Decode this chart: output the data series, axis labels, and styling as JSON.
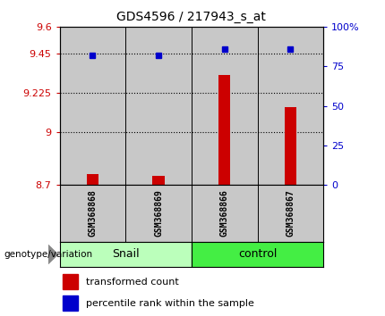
{
  "title": "GDS4596 / 217943_s_at",
  "samples": [
    "GSM368868",
    "GSM368869",
    "GSM368866",
    "GSM368867"
  ],
  "groups": [
    "Snail",
    "Snail",
    "control",
    "control"
  ],
  "bar_values": [
    8.762,
    8.752,
    9.325,
    9.142
  ],
  "percentile_values": [
    82,
    82,
    86,
    86
  ],
  "bar_base": 8.7,
  "ylim_left": [
    8.7,
    9.6
  ],
  "ylim_right": [
    0,
    100
  ],
  "yticks_left": [
    8.7,
    9.0,
    9.225,
    9.45,
    9.6
  ],
  "ytick_labels_left": [
    "8.7",
    "9",
    "9.225",
    "9.45",
    "9.6"
  ],
  "yticks_right": [
    0,
    25,
    50,
    75,
    100
  ],
  "ytick_labels_right": [
    "0",
    "25",
    "50",
    "75",
    "100%"
  ],
  "hlines": [
    9.45,
    9.225,
    9.0
  ],
  "bar_color": "#cc0000",
  "marker_color": "#0000cc",
  "legend_items": [
    {
      "label": "transformed count",
      "color": "#cc0000"
    },
    {
      "label": "percentile rank within the sample",
      "color": "#0000cc"
    }
  ],
  "xlabel_left": "genotype/variation",
  "bar_width": 0.18,
  "sample_area_color": "#c8c8c8",
  "snail_color": "#bbffbb",
  "control_color": "#44ee44",
  "bg_color": "#ffffff"
}
